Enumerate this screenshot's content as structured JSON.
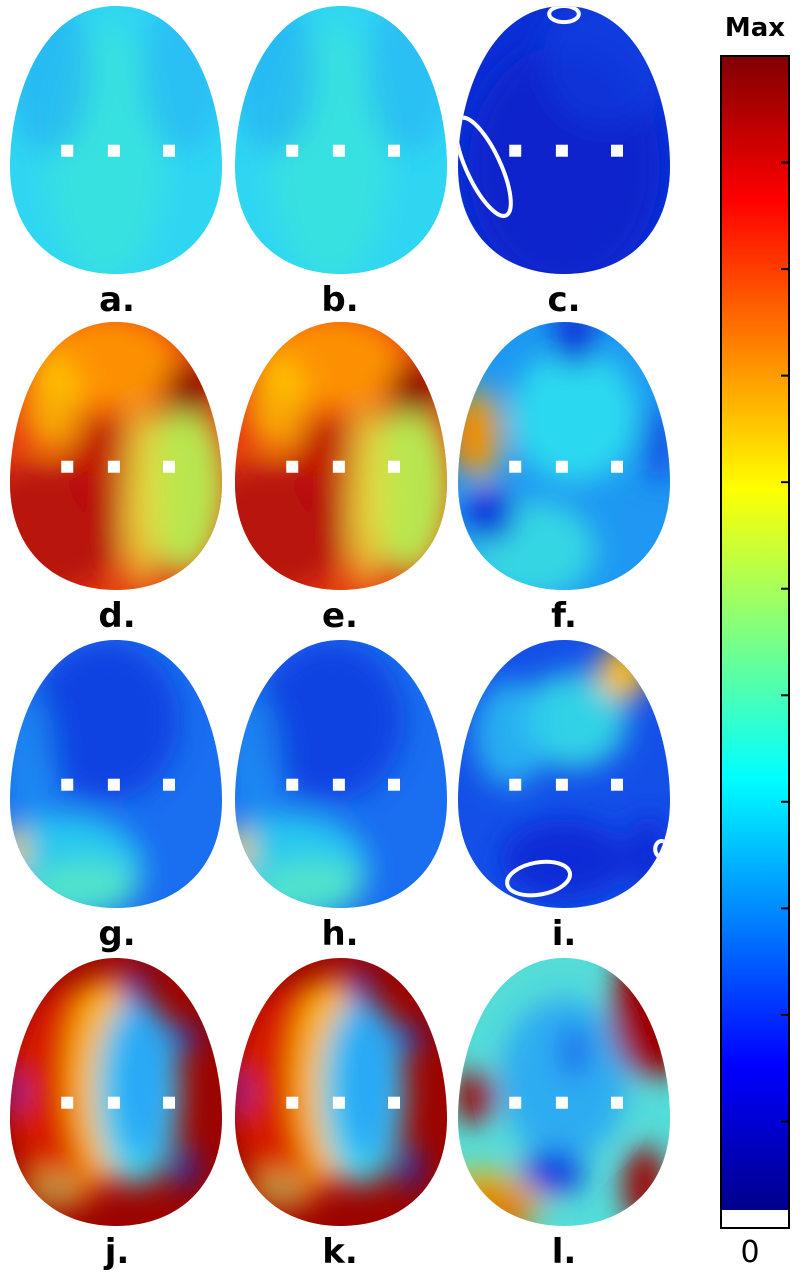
{
  "panels": [
    {
      "label": "a.",
      "base": "#2fd6f2",
      "blobs": [
        {
          "c": "#37e2df",
          "p": [
            0.45,
            0.55,
            0.28,
            0.48
          ],
          "o": 0.9
        },
        {
          "c": "#23b0f4",
          "p": [
            0.18,
            0.25,
            0.2,
            0.3
          ],
          "o": 0.7
        },
        {
          "c": "#23b0f4",
          "p": [
            0.82,
            0.25,
            0.2,
            0.3
          ],
          "o": 0.6
        }
      ]
    },
    {
      "label": "b.",
      "base": "#2fd6f2",
      "blobs": [
        {
          "c": "#37e2df",
          "p": [
            0.45,
            0.55,
            0.28,
            0.48
          ],
          "o": 0.9
        },
        {
          "c": "#23b0f4",
          "p": [
            0.18,
            0.25,
            0.2,
            0.3
          ],
          "o": 0.7
        },
        {
          "c": "#23b0f4",
          "p": [
            0.82,
            0.25,
            0.2,
            0.3
          ],
          "o": 0.6
        }
      ]
    },
    {
      "label": "c.",
      "base": "#0a2fd6",
      "blobs": [
        {
          "c": "#0a1fc8",
          "p": [
            0.5,
            0.6,
            0.45,
            0.45
          ],
          "o": 0.8
        },
        {
          "c": "#1648e6",
          "p": [
            0.7,
            0.2,
            0.3,
            0.25
          ],
          "o": 0.5
        }
      ],
      "rings": [
        {
          "p": [
            0.12,
            0.6,
            0.08,
            0.2
          ],
          "r": -25
        },
        {
          "p": [
            0.5,
            0.03,
            0.07,
            0.03
          ],
          "r": 0
        }
      ]
    },
    {
      "label": "d.",
      "base": "#e63a10",
      "blobs": [
        {
          "c": "#b81208",
          "p": [
            0.15,
            0.78,
            0.38,
            0.25
          ],
          "o": 1
        },
        {
          "c": "#b81208",
          "p": [
            0.45,
            0.55,
            0.18,
            0.2
          ],
          "o": 0.8
        },
        {
          "c": "#ff9a00",
          "p": [
            0.45,
            0.15,
            0.35,
            0.18
          ],
          "o": 0.9
        },
        {
          "c": "#ffd400",
          "p": [
            0.2,
            0.3,
            0.14,
            0.18
          ],
          "o": 0.7
        },
        {
          "c": "#b8e650",
          "p": [
            0.82,
            0.62,
            0.2,
            0.32
          ],
          "o": 1
        },
        {
          "c": "#e8e040",
          "p": [
            0.62,
            0.65,
            0.1,
            0.35
          ],
          "o": 0.8
        },
        {
          "c": "#8c0000",
          "p": [
            0.85,
            0.25,
            0.12,
            0.1
          ],
          "o": 1
        }
      ]
    },
    {
      "label": "e.",
      "base": "#e63a10",
      "blobs": [
        {
          "c": "#b81208",
          "p": [
            0.15,
            0.78,
            0.38,
            0.25
          ],
          "o": 1
        },
        {
          "c": "#b81208",
          "p": [
            0.45,
            0.55,
            0.18,
            0.2
          ],
          "o": 0.8
        },
        {
          "c": "#ff9a00",
          "p": [
            0.45,
            0.15,
            0.35,
            0.18
          ],
          "o": 0.9
        },
        {
          "c": "#ffd400",
          "p": [
            0.2,
            0.3,
            0.14,
            0.18
          ],
          "o": 0.7
        },
        {
          "c": "#b8e650",
          "p": [
            0.82,
            0.62,
            0.2,
            0.32
          ],
          "o": 1
        },
        {
          "c": "#e8e040",
          "p": [
            0.62,
            0.65,
            0.1,
            0.35
          ],
          "o": 0.8
        },
        {
          "c": "#8c0000",
          "p": [
            0.85,
            0.25,
            0.12,
            0.1
          ],
          "o": 1
        }
      ]
    },
    {
      "label": "f.",
      "base": "#1e98f2",
      "blobs": [
        {
          "c": "#2ee0ee",
          "p": [
            0.55,
            0.35,
            0.3,
            0.25
          ],
          "o": 0.9
        },
        {
          "c": "#3ce6e0",
          "p": [
            0.35,
            0.85,
            0.3,
            0.18
          ],
          "o": 0.8
        },
        {
          "c": "#e64410",
          "p": [
            0.05,
            0.42,
            0.1,
            0.13
          ],
          "o": 1
        },
        {
          "c": "#ffae00",
          "p": [
            0.1,
            0.42,
            0.12,
            0.18
          ],
          "o": 0.7
        },
        {
          "c": "#0a30d8",
          "p": [
            0.55,
            0.05,
            0.1,
            0.12
          ],
          "o": 1
        },
        {
          "c": "#0a30d8",
          "p": [
            0.15,
            0.72,
            0.12,
            0.1
          ],
          "o": 1
        },
        {
          "c": "#1040e0",
          "p": [
            0.95,
            0.45,
            0.08,
            0.15
          ],
          "o": 0.8
        }
      ]
    },
    {
      "label": "g.",
      "base": "#1a6ef0",
      "blobs": [
        {
          "c": "#0e3fe0",
          "p": [
            0.45,
            0.3,
            0.35,
            0.3
          ],
          "o": 0.9
        },
        {
          "c": "#2ad2f0",
          "p": [
            0.25,
            0.85,
            0.38,
            0.2
          ],
          "o": 0.9
        },
        {
          "c": "#56e6c8",
          "p": [
            0.35,
            0.92,
            0.25,
            0.1
          ],
          "o": 0.9
        },
        {
          "c": "#f6c200",
          "p": [
            0.02,
            0.78,
            0.06,
            0.08
          ],
          "o": 1
        },
        {
          "c": "#1e9af4",
          "p": [
            0.1,
            0.45,
            0.12,
            0.25
          ],
          "o": 0.6
        }
      ]
    },
    {
      "label": "h.",
      "base": "#1a6ef0",
      "blobs": [
        {
          "c": "#0e3fe0",
          "p": [
            0.45,
            0.3,
            0.35,
            0.3
          ],
          "o": 0.9
        },
        {
          "c": "#2ad2f0",
          "p": [
            0.25,
            0.85,
            0.38,
            0.2
          ],
          "o": 0.9
        },
        {
          "c": "#56e6c8",
          "p": [
            0.35,
            0.92,
            0.25,
            0.1
          ],
          "o": 0.9
        },
        {
          "c": "#f6c200",
          "p": [
            0.02,
            0.78,
            0.06,
            0.08
          ],
          "o": 1
        },
        {
          "c": "#1e9af4",
          "p": [
            0.1,
            0.45,
            0.12,
            0.25
          ],
          "o": 0.6
        }
      ]
    },
    {
      "label": "i.",
      "base": "#1450e8",
      "blobs": [
        {
          "c": "#34e0e6",
          "p": [
            0.55,
            0.3,
            0.25,
            0.18
          ],
          "o": 0.9
        },
        {
          "c": "#ffbe00",
          "p": [
            0.78,
            0.12,
            0.12,
            0.1
          ],
          "o": 1
        },
        {
          "c": "#2cc4f2",
          "p": [
            0.25,
            0.35,
            0.18,
            0.2
          ],
          "o": 0.8
        },
        {
          "c": "#0a2ad6",
          "p": [
            0.5,
            0.82,
            0.3,
            0.15
          ],
          "o": 1
        },
        {
          "c": "#0a2ad6",
          "p": [
            0.9,
            0.8,
            0.1,
            0.15
          ],
          "o": 1
        }
      ],
      "rings": [
        {
          "p": [
            0.38,
            0.89,
            0.15,
            0.06
          ],
          "r": -10
        },
        {
          "p": [
            0.96,
            0.78,
            0.03,
            0.03
          ],
          "r": 0
        }
      ]
    },
    {
      "label": "j.",
      "base": "#9c0400",
      "blobs": [
        {
          "c": "#d81a04",
          "p": [
            0.3,
            0.5,
            0.3,
            0.4
          ],
          "o": 1
        },
        {
          "c": "#ffb400",
          "p": [
            0.45,
            0.45,
            0.18,
            0.38
          ],
          "o": 1
        },
        {
          "c": "#40d8ee",
          "p": [
            0.6,
            0.5,
            0.2,
            0.35
          ],
          "o": 1
        },
        {
          "c": "#2aa8f6",
          "p": [
            0.62,
            0.45,
            0.14,
            0.3
          ],
          "o": 1
        },
        {
          "c": "#0a30d8",
          "p": [
            0.58,
            0.1,
            0.05,
            0.06
          ],
          "o": 1
        },
        {
          "c": "#0a30d8",
          "p": [
            0.82,
            0.3,
            0.06,
            0.05
          ],
          "o": 1
        },
        {
          "c": "#0a30d8",
          "p": [
            0.82,
            0.78,
            0.05,
            0.08
          ],
          "o": 1
        },
        {
          "c": "#0a30d8",
          "p": [
            0.22,
            0.86,
            0.1,
            0.04
          ],
          "o": 1
        },
        {
          "c": "#ffd000",
          "p": [
            0.22,
            0.86,
            0.16,
            0.08
          ],
          "o": 0.6
        },
        {
          "c": "#0a30d8",
          "p": [
            0.02,
            0.5,
            0.03,
            0.06
          ],
          "o": 1
        }
      ]
    },
    {
      "label": "k.",
      "base": "#9c0400",
      "blobs": [
        {
          "c": "#d81a04",
          "p": [
            0.3,
            0.5,
            0.3,
            0.4
          ],
          "o": 1
        },
        {
          "c": "#ffb400",
          "p": [
            0.45,
            0.45,
            0.18,
            0.38
          ],
          "o": 1
        },
        {
          "c": "#40d8ee",
          "p": [
            0.6,
            0.5,
            0.2,
            0.35
          ],
          "o": 1
        },
        {
          "c": "#2aa8f6",
          "p": [
            0.62,
            0.45,
            0.14,
            0.3
          ],
          "o": 1
        },
        {
          "c": "#0a30d8",
          "p": [
            0.58,
            0.1,
            0.05,
            0.06
          ],
          "o": 1
        },
        {
          "c": "#0a30d8",
          "p": [
            0.82,
            0.3,
            0.06,
            0.05
          ],
          "o": 1
        },
        {
          "c": "#0a30d8",
          "p": [
            0.82,
            0.78,
            0.05,
            0.08
          ],
          "o": 1
        },
        {
          "c": "#0a30d8",
          "p": [
            0.22,
            0.86,
            0.1,
            0.04
          ],
          "o": 1
        },
        {
          "c": "#ffd000",
          "p": [
            0.22,
            0.86,
            0.16,
            0.08
          ],
          "o": 0.6
        },
        {
          "c": "#0a30d8",
          "p": [
            0.02,
            0.5,
            0.03,
            0.06
          ],
          "o": 1
        }
      ]
    },
    {
      "label": "l.",
      "base": "#54dcd8",
      "blobs": [
        {
          "c": "#2aa6f4",
          "p": [
            0.5,
            0.45,
            0.3,
            0.3
          ],
          "o": 0.9
        },
        {
          "c": "#9c0400",
          "p": [
            0.92,
            0.2,
            0.2,
            0.25
          ],
          "o": 1
        },
        {
          "c": "#9c0400",
          "p": [
            0.08,
            0.52,
            0.1,
            0.1
          ],
          "o": 1
        },
        {
          "c": "#9c0400",
          "p": [
            0.15,
            0.95,
            0.2,
            0.1
          ],
          "o": 1
        },
        {
          "c": "#9c0400",
          "p": [
            0.88,
            0.85,
            0.1,
            0.15
          ],
          "o": 1
        },
        {
          "c": "#ffb400",
          "p": [
            0.12,
            0.9,
            0.3,
            0.12
          ],
          "o": 0.7
        },
        {
          "c": "#0e3ae0",
          "p": [
            0.45,
            0.8,
            0.15,
            0.08
          ],
          "o": 1
        },
        {
          "c": "#1e60ee",
          "p": [
            0.55,
            0.35,
            0.06,
            0.1
          ],
          "o": 1
        }
      ]
    }
  ],
  "colorbar": {
    "max_label": "Max",
    "min_label": "0",
    "colors": [
      "#00008c",
      "#0000ff",
      "#0080ff",
      "#00ffff",
      "#80ff80",
      "#ffff00",
      "#ff8000",
      "#ff0000",
      "#800000"
    ],
    "zero_color": "#ffffff",
    "tick_count": 11
  },
  "electrode_color": "#ffffff"
}
